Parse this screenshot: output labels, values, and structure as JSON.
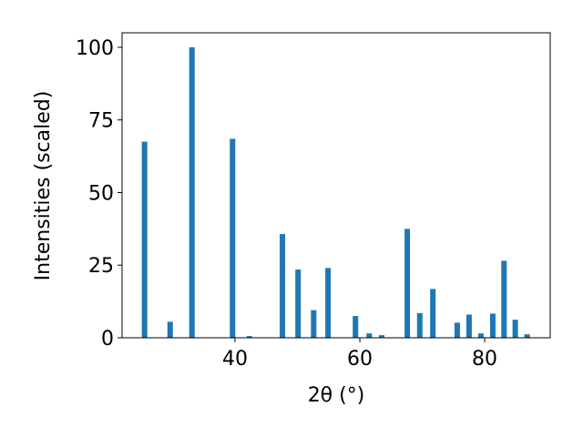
{
  "chart_data": {
    "type": "bar",
    "xlabel": "2θ (°)",
    "ylabel": "Intensities (scaled)",
    "x": [
      25.5,
      29.6,
      33.1,
      39.6,
      42.3,
      47.6,
      50.1,
      52.6,
      54.9,
      59.3,
      61.5,
      63.5,
      67.6,
      69.6,
      71.7,
      75.6,
      77.5,
      79.4,
      81.3,
      83.1,
      84.9,
      86.8
    ],
    "values": [
      67.5,
      5.5,
      100,
      68.5,
      0.6,
      35.7,
      23.5,
      9.5,
      24,
      7.5,
      1.5,
      0.9,
      37.5,
      8.5,
      16.8,
      5.2,
      8,
      1.5,
      8.3,
      26.5,
      6.2,
      1.2
    ],
    "color": "#1f77b4",
    "xlim": [
      21.9,
      90.5
    ],
    "xticks": [
      40,
      60,
      80
    ],
    "ylim": [
      0,
      105
    ],
    "yticks": [
      0,
      25,
      50,
      75,
      100
    ]
  }
}
